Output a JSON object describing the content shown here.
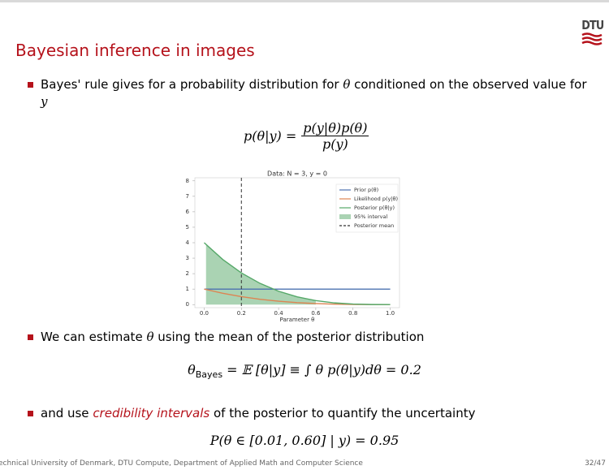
{
  "header": {
    "title": "Bayesian inference in images",
    "logo": "DTU"
  },
  "bullets": [
    [
      "Bayes' rule gives for a probability distribution for ",
      "θ",
      " conditioned on the observed value for ",
      "y"
    ],
    [
      "We can estimate ",
      "θ",
      " using the mean of the posterior distribution"
    ],
    [
      "and use ",
      "credibility intervals",
      " of the posterior to quantify the uncertainty"
    ]
  ],
  "formulas": {
    "bayes_rule": {
      "lhs": "p(θ|y) =",
      "numerator": "p(y|θ)p(θ)",
      "denominator": "p(y)"
    },
    "estimate": {
      "symbol": "θ",
      "subscript": "Bayes",
      "rhs": "= 𝔼 [θ|y] ≡ ∫ θ p(θ|y)dθ = 0.2"
    },
    "interval": "P(θ ∈ [0.01, 0.60] | y) = 0.95"
  },
  "chart_data": {
    "type": "line",
    "title": "Data: N = 3, y = 0",
    "x_label": "Parameter θ",
    "xlim": [
      -0.05,
      1.05
    ],
    "ylim": [
      -0.2,
      8.2
    ],
    "xticks": [
      {
        "value": 0,
        "label": "0.0"
      },
      {
        "value": 0.2,
        "label": "0.2"
      },
      {
        "value": 0.4,
        "label": "0.4"
      },
      {
        "value": 0.6,
        "label": "0.6"
      },
      {
        "value": 0.8,
        "label": "0.8"
      },
      {
        "value": 1,
        "label": "1.0"
      }
    ],
    "yticks": [
      0,
      1,
      2,
      3,
      4,
      5,
      6,
      7,
      8
    ],
    "grid": false,
    "legend": "upper right",
    "series": [
      {
        "name": "Prior p(θ)",
        "kind": "line",
        "color": "#4c72b0",
        "x": [
          0,
          1
        ],
        "values": [
          1,
          1
        ]
      },
      {
        "name": "Likelihood p(y|θ)",
        "kind": "line",
        "color": "#dd8452",
        "x": [
          0,
          0.1,
          0.2,
          0.3,
          0.4,
          0.5,
          0.6,
          0.7,
          0.8,
          0.9,
          1
        ],
        "values": [
          1,
          0.729,
          0.512,
          0.343,
          0.216,
          0.125,
          0.064,
          0.027,
          0.008,
          0.001,
          0
        ]
      },
      {
        "name": "Posterior p(θ|y)",
        "kind": "line",
        "color": "#55a868",
        "x": [
          0,
          0.1,
          0.2,
          0.3,
          0.4,
          0.5,
          0.6,
          0.7,
          0.8,
          0.9,
          1
        ],
        "values": [
          4,
          2.916,
          2.048,
          1.372,
          0.864,
          0.5,
          0.256,
          0.108,
          0.032,
          0.004,
          0
        ]
      },
      {
        "name": "95% interval",
        "kind": "area",
        "color": "#55a868",
        "x": [
          0.01,
          0.1,
          0.2,
          0.3,
          0.4,
          0.5,
          0.6
        ],
        "values": [
          3.881,
          2.916,
          2.048,
          1.372,
          0.864,
          0.5,
          0.256
        ]
      },
      {
        "name": "Posterior mean",
        "kind": "vline",
        "color": "#333333",
        "x": [
          0.2
        ]
      }
    ]
  },
  "footer": {
    "text": "Technical University of Denmark, DTU Compute, Department of Applied Math and Computer Science",
    "page": "32/47"
  }
}
